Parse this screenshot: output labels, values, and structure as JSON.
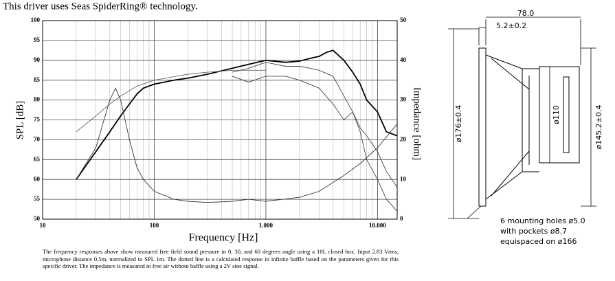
{
  "header": "This driver uses Seas SpiderRing® technology.",
  "chart_data": {
    "type": "line",
    "xlabel": "Frequency [Hz]",
    "ylabel": "SPL [dB]",
    "y2label": "Impedance [ohm]",
    "xscale": "log",
    "grid": true,
    "xlim": [
      10,
      15000
    ],
    "xticks": [
      10,
      100,
      {
        "value": 1000,
        "label": "1.000"
      },
      {
        "value": 10000,
        "label": "10.000"
      }
    ],
    "xminorticks": [
      20,
      30,
      40,
      50,
      60,
      70,
      80,
      90,
      200,
      300,
      400,
      500,
      600,
      700,
      800,
      900,
      2000,
      3000,
      4000,
      5000,
      6000,
      7000,
      8000,
      9000
    ],
    "ylim": [
      50,
      100
    ],
    "yticks": [
      50,
      55,
      60,
      65,
      70,
      75,
      80,
      85,
      90,
      95,
      100
    ],
    "y2lim": [
      0,
      50
    ],
    "y2ticks": [
      0,
      10,
      20,
      30,
      40,
      50
    ],
    "series": [
      {
        "color": "#000000",
        "x": [
          20,
          30,
          40,
          50,
          60,
          70,
          80,
          100,
          150,
          200,
          300,
          500,
          700,
          1000,
          1500,
          2000,
          2500,
          3000,
          3500,
          4000,
          5000,
          6000,
          7000,
          8000,
          10000,
          12000,
          15000
        ],
        "values": [
          60,
          67,
          72,
          76,
          79,
          81.5,
          83,
          84,
          85,
          85.5,
          86.5,
          88,
          89,
          90,
          89.5,
          89.8,
          90.5,
          91,
          92,
          92.5,
          90,
          87,
          84,
          80,
          77,
          72,
          71
        ]
      },
      {
        "color": "#444444",
        "x": [
          500,
          700,
          1000,
          1500,
          2000,
          2500,
          3000,
          4000,
          5000,
          6000,
          7000,
          8000,
          10000,
          12000,
          15000
        ],
        "values": [
          87,
          88,
          89.5,
          88.5,
          88.5,
          88,
          87.5,
          86,
          81,
          77,
          73,
          71,
          67,
          62,
          58
        ]
      },
      {
        "color": "#444444",
        "x": [
          500,
          700,
          1000,
          1500,
          2000,
          3000,
          4000,
          5000,
          6000,
          7000,
          8000,
          10000,
          12000,
          15000
        ],
        "values": [
          86,
          84.5,
          86,
          86,
          85,
          83,
          79,
          75,
          77,
          72,
          65,
          60,
          55,
          52
        ]
      },
      {
        "color": "#666666",
        "x": [
          20,
          30,
          40,
          50,
          70,
          100,
          200,
          300,
          500,
          1000
        ],
        "values": [
          72,
          76,
          79,
          81,
          83.5,
          85,
          86.5,
          87,
          87.5,
          87.5
        ]
      },
      {
        "color": "#333333",
        "axis": "y2",
        "x": [
          20,
          30,
          40,
          45,
          50,
          60,
          70,
          80,
          100,
          150,
          200,
          300,
          500,
          700,
          1000,
          2000,
          3000,
          5000,
          7000,
          10000,
          15000
        ],
        "values": [
          10,
          18,
          30,
          33,
          30,
          20,
          13,
          10,
          7,
          5,
          4.5,
          4.2,
          4.5,
          5,
          4.5,
          5.5,
          7,
          11,
          14,
          18,
          24
        ]
      }
    ]
  },
  "caption": "The frequency responses above show measured free field sound pressure in 0, 30, and 60 degrees angle using a 10L closed box. Input 2.83 Vrms, microphone distance 0.5m, normalized to SPL 1m. The dotted line is a calculated response in infinite baffle based on the parameters given for this specific driver. The impedance is measured in free air without baffle using a 2V sine signal.",
  "drawing": {
    "depth": "78.0",
    "plate": "5.2±0.2",
    "outer": "ø176±0.4",
    "magnet": "ø110",
    "cutout": "ø145.2±0.4",
    "holes": [
      "6 mounting holes ø5.0",
      "with pockets ø8.7",
      "equispaced on ø166"
    ]
  }
}
